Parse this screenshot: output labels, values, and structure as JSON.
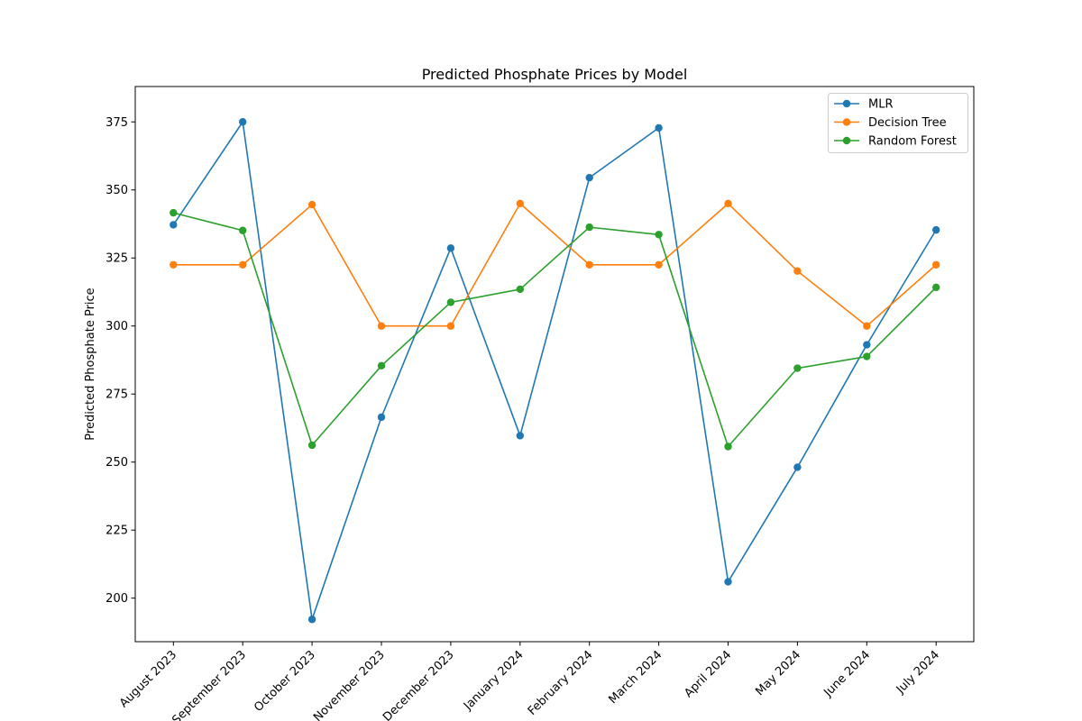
{
  "chart_data": {
    "type": "line",
    "title": "Predicted Phosphate Prices by Model",
    "xlabel": "",
    "ylabel": "Predicted Phosphate Price",
    "categories": [
      "August 2023",
      "September 2023",
      "October 2023",
      "November 2023",
      "December 2023",
      "January 2024",
      "February 2024",
      "March 2024",
      "April 2024",
      "May 2024",
      "June 2024",
      "July 2024"
    ],
    "ylim": [
      184,
      388
    ],
    "yticks": [
      200,
      225,
      250,
      275,
      300,
      325,
      350,
      375
    ],
    "grid": false,
    "legend_position": "top-right",
    "markers": "circle",
    "series": [
      {
        "name": "MLR",
        "color": "#1f77b4",
        "values": [
          337.2,
          375.0,
          192.2,
          266.5,
          328.6,
          259.7,
          354.5,
          372.8,
          206.0,
          248.1,
          293.1,
          335.3
        ]
      },
      {
        "name": "Decision Tree",
        "color": "#ff7f0e",
        "values": [
          322.5,
          322.5,
          344.6,
          300.0,
          300.0,
          345.0,
          322.5,
          322.5,
          345.0,
          320.2,
          300.0,
          322.5
        ]
      },
      {
        "name": "Random Forest",
        "color": "#2ca02c",
        "values": [
          341.6,
          335.1,
          256.2,
          285.4,
          308.7,
          313.5,
          336.3,
          333.6,
          255.7,
          284.5,
          288.8,
          314.2
        ]
      }
    ]
  }
}
